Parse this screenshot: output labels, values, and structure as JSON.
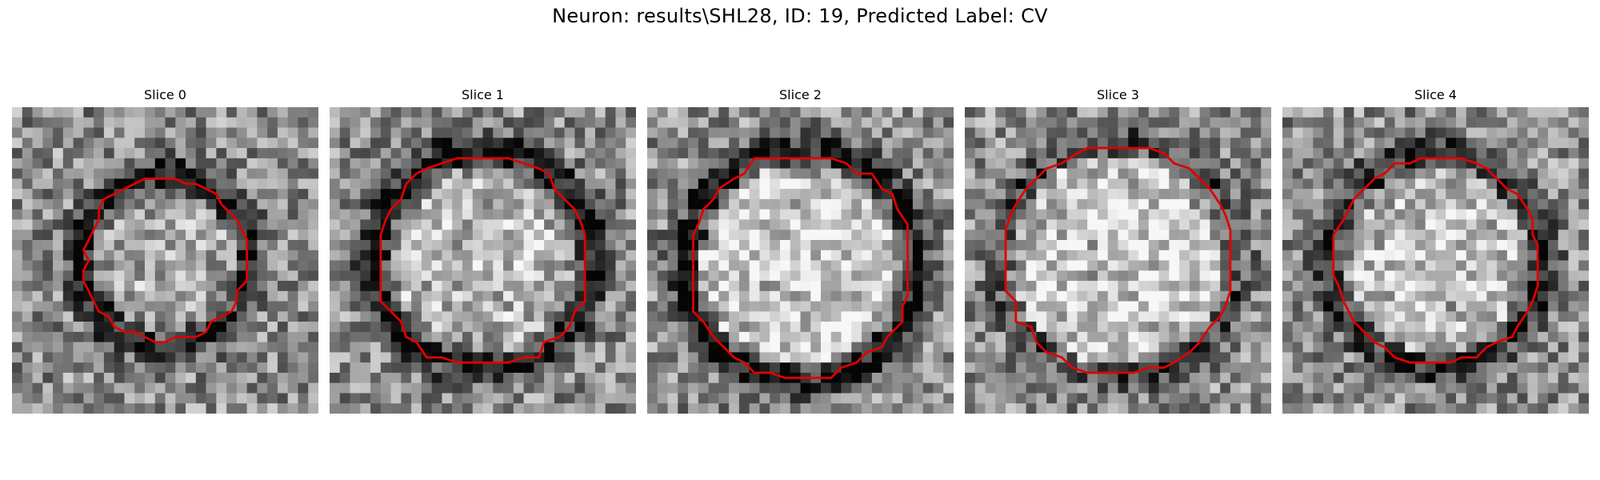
{
  "figure": {
    "title": "Neuron: results\\SHL28, ID: 19, Predicted Label: CV",
    "contour_color": "#e00000",
    "colormap": "gray"
  },
  "panels": [
    {
      "title": "Slice 0",
      "icon": "grayscale-microscopy-image",
      "seed": 11,
      "center": [
        0.5,
        0.5
      ],
      "ring_radius": 0.28,
      "ring_dark": 0.55,
      "inner_bright": 0.15
    },
    {
      "title": "Slice 1",
      "icon": "grayscale-microscopy-image",
      "seed": 23,
      "center": [
        0.5,
        0.5
      ],
      "ring_radius": 0.36,
      "ring_dark": 0.6,
      "inner_bright": 0.2
    },
    {
      "title": "Slice 2",
      "icon": "grayscale-microscopy-image",
      "seed": 37,
      "center": [
        0.5,
        0.52
      ],
      "ring_radius": 0.38,
      "ring_dark": 0.6,
      "inner_bright": 0.35
    },
    {
      "title": "Slice 3",
      "icon": "grayscale-microscopy-image",
      "seed": 41,
      "center": [
        0.5,
        0.5
      ],
      "ring_radius": 0.39,
      "ring_dark": 0.3,
      "inner_bright": 0.3
    },
    {
      "title": "Slice 4",
      "icon": "grayscale-microscopy-image",
      "seed": 53,
      "center": [
        0.5,
        0.5
      ],
      "ring_radius": 0.35,
      "ring_dark": 0.45,
      "inner_bright": 0.25
    }
  ]
}
